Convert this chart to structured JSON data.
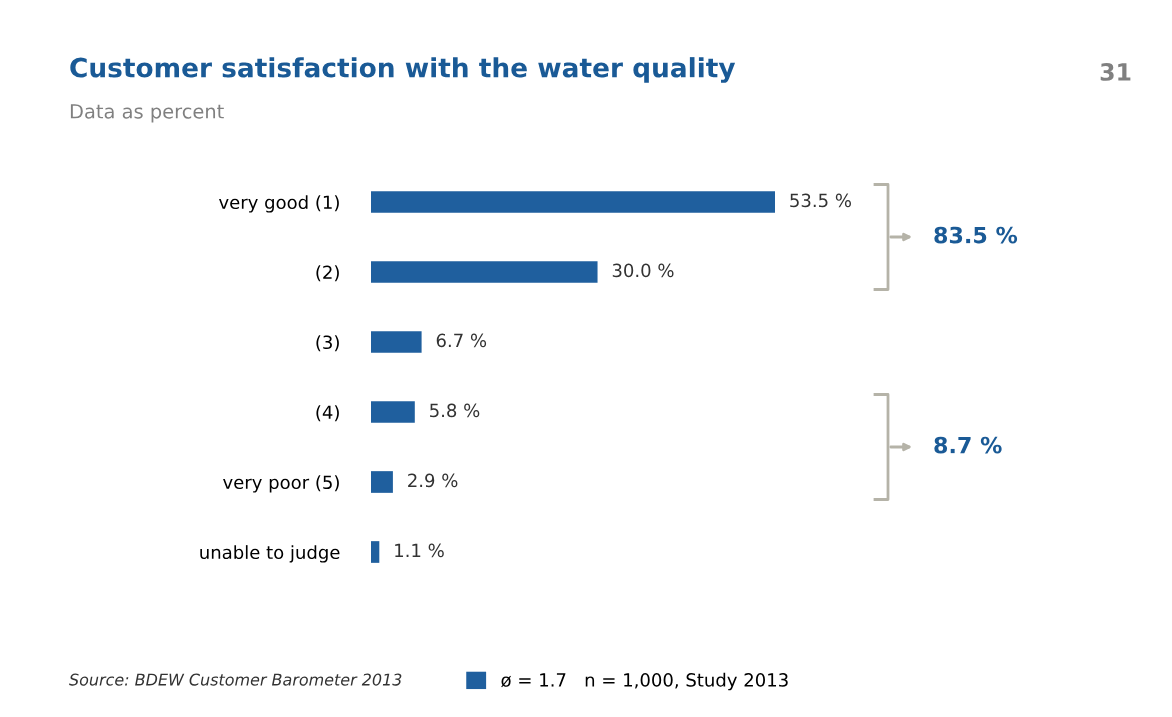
{
  "chart_data": {
    "type": "bar",
    "orientation": "horizontal",
    "title": "Customer satisfaction with the water quality",
    "subtitle": "Data as percent",
    "categories": [
      "very good (1)",
      "(2)",
      "(3)",
      "(4)",
      "very poor (5)",
      "unable to judge"
    ],
    "series": [
      {
        "name": "ø = 1.7   n = 1,000, Study 2013",
        "color": "#1f5f9e",
        "values": [
          53.5,
          30.0,
          6.7,
          5.8,
          2.9,
          1.1
        ],
        "value_labels": [
          "53.5 %",
          "30.0 %",
          "6.7 %",
          "5.8 %",
          "2.9 %",
          "1.1 %"
        ]
      }
    ],
    "annotations": [
      "Source: BDEW Customer Barometer 2013",
      "31",
      "83.5 %",
      "8.7 %"
    ],
    "legend": "bottom",
    "grid": false
  }
}
